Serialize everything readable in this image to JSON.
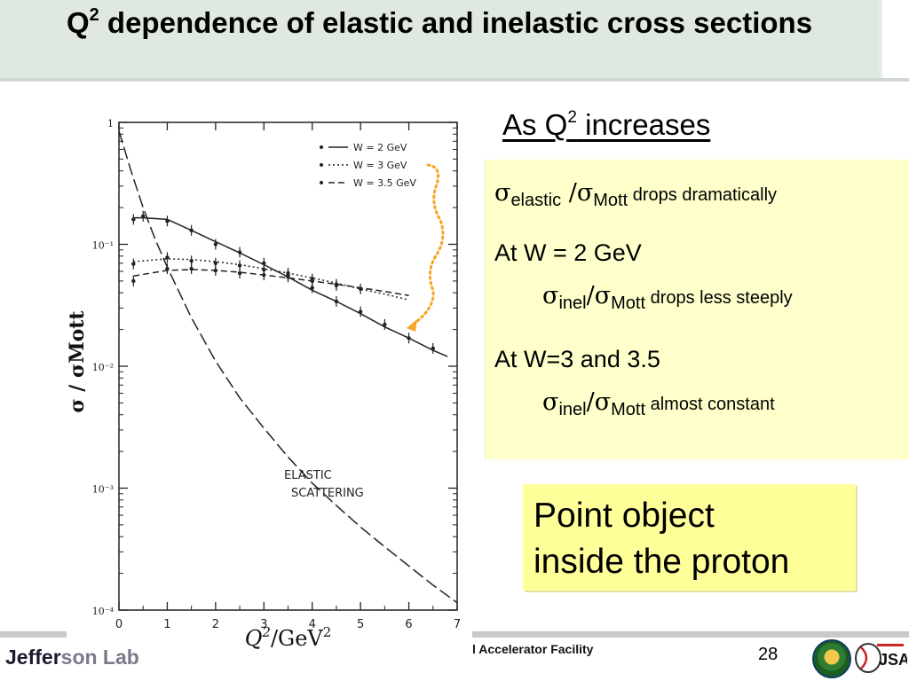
{
  "slide": {
    "title_q": "Q",
    "title_sup": "2",
    "title_rest": " dependence of elastic and inelastic cross sections"
  },
  "heading": {
    "text_a": "As Q",
    "sup": "2",
    "text_b": " increases"
  },
  "notes": {
    "line1": {
      "sigma": "σ",
      "sub1": "elastic",
      "slash": " /",
      "sigma2": "σ",
      "sub2": "Mott",
      "text": " drops dramatically"
    },
    "line2": {
      "text": "At W = 2 GeV"
    },
    "line3": {
      "sigma": "σ",
      "sub1": "inel",
      "slash": "/",
      "sigma2": "σ",
      "sub2": "Mott",
      "text": " drops less steeply"
    },
    "line4": {
      "text": "At W=3 and 3.5"
    },
    "line5": {
      "sigma": "σ",
      "sub1": "inel",
      "slash": "/",
      "sigma2": "σ",
      "sub2": "Mott",
      "text": "  almost constant"
    }
  },
  "callout": {
    "line1": "Point object",
    "line2": "inside the proton"
  },
  "footer": {
    "lab_visible": "Jeffer",
    "lab_partial": "son Lab",
    "facility": "l Accelerator Facility",
    "page": "28"
  },
  "chart_data": {
    "type": "line",
    "scale": "log-y",
    "xlabel_q": "Q",
    "xlabel_sup": "2",
    "xlabel_rest": "/GeV",
    "xlabel_sup2": "2",
    "ylabel": "σ / σMott",
    "xlim": [
      0,
      7
    ],
    "ylim": [
      0.0001,
      1
    ],
    "x_ticks": [
      "0",
      "1",
      "2",
      "3",
      "4",
      "5",
      "6",
      "7"
    ],
    "y_ticks": [
      {
        "value": 1,
        "label": "1"
      },
      {
        "value": 0.1,
        "label": "10⁻¹"
      },
      {
        "value": 0.01,
        "label": "10⁻²"
      },
      {
        "value": 0.001,
        "label": "10⁻³"
      },
      {
        "value": 0.0001,
        "label": "10⁻⁴"
      }
    ],
    "legend": [
      "W = 2 GeV",
      "W = 3 GeV",
      "W = 3.5 GeV"
    ],
    "annotation": [
      "ELASTIC",
      "SCATTERING"
    ],
    "series": [
      {
        "name": "W = 2 GeV",
        "style": "solid",
        "x": [
          0.3,
          0.5,
          1.0,
          1.5,
          2.0,
          2.5,
          3.0,
          3.5,
          4.0,
          4.5,
          5.0,
          5.5,
          6.0,
          6.5,
          6.8
        ],
        "y": [
          0.165,
          0.165,
          0.16,
          0.13,
          0.105,
          0.085,
          0.068,
          0.054,
          0.042,
          0.034,
          0.027,
          0.021,
          0.017,
          0.0135,
          0.012
        ]
      },
      {
        "name": "W = 3 GeV",
        "style": "dotted",
        "x": [
          0.3,
          1.0,
          1.5,
          2.0,
          2.5,
          3.0,
          3.5,
          4.0,
          4.5,
          5.0,
          5.5,
          6.0
        ],
        "y": [
          0.072,
          0.076,
          0.075,
          0.072,
          0.068,
          0.063,
          0.058,
          0.053,
          0.048,
          0.043,
          0.039,
          0.035
        ]
      },
      {
        "name": "W = 3.5 GeV",
        "style": "dashed",
        "x": [
          0.3,
          1.0,
          1.5,
          2.0,
          2.5,
          3.0,
          3.5,
          4.0,
          4.5,
          5.0,
          5.5,
          6.0
        ],
        "y": [
          0.055,
          0.061,
          0.062,
          0.061,
          0.059,
          0.056,
          0.053,
          0.05,
          0.047,
          0.044,
          0.041,
          0.038
        ]
      },
      {
        "name": "ELASTIC SCATTERING",
        "style": "long-dash",
        "x": [
          0.0,
          0.25,
          0.5,
          0.75,
          1.0,
          1.5,
          2.0,
          2.5,
          3.0,
          3.5,
          4.0,
          4.5,
          5.0,
          5.5,
          6.0,
          6.5,
          7.0
        ],
        "y": [
          0.85,
          0.4,
          0.2,
          0.11,
          0.065,
          0.025,
          0.011,
          0.0055,
          0.0031,
          0.0018,
          0.0011,
          0.00072,
          0.00048,
          0.00033,
          0.00023,
          0.00016,
          0.000115
        ]
      }
    ],
    "points": [
      {
        "series": "W = 2 GeV",
        "x": [
          0.3,
          0.5,
          1.0,
          1.5,
          2.0,
          2.5,
          3.0,
          3.5,
          4.0,
          4.5,
          5.0,
          5.5,
          6.0,
          6.5
        ],
        "y": [
          0.16,
          0.17,
          0.155,
          0.13,
          0.1,
          0.086,
          0.07,
          0.056,
          0.044,
          0.034,
          0.028,
          0.022,
          0.017,
          0.014
        ]
      },
      {
        "series": "W = 3 GeV",
        "x": [
          0.3,
          1.0,
          1.5,
          2.0,
          2.5,
          3.0,
          3.5,
          4.0,
          4.5,
          5.0
        ],
        "y": [
          0.069,
          0.078,
          0.073,
          0.07,
          0.067,
          0.062,
          0.058,
          0.052,
          0.047,
          0.043
        ]
      },
      {
        "series": "W = 3.5 GeV",
        "x": [
          0.3,
          1.0,
          1.5,
          2.0,
          2.5,
          3.0,
          3.5,
          4.0,
          4.5
        ],
        "y": [
          0.05,
          0.063,
          0.063,
          0.061,
          0.058,
          0.056,
          0.054,
          0.05,
          0.046
        ]
      }
    ],
    "arrow_color": "#f5a623"
  }
}
